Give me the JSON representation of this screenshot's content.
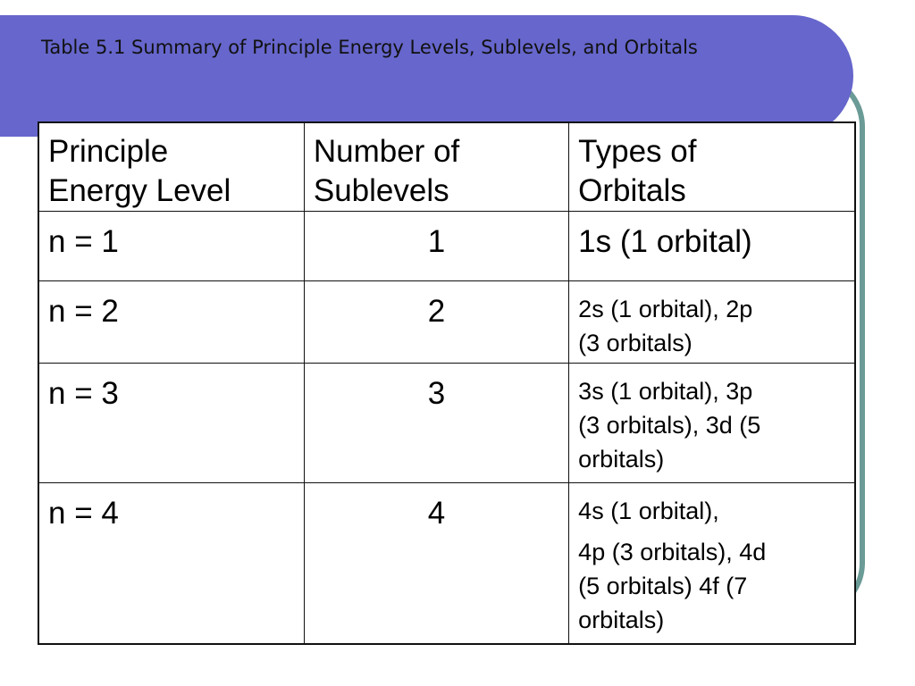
{
  "slide": {
    "title": "Table 5.1 Summary of Principle Energy Levels, Sublevels, and Orbitals",
    "accent_color": "#6666cc",
    "frame_color": "#6b9b96"
  },
  "table": {
    "headers": [
      [
        "Principle",
        "Energy Level"
      ],
      [
        "Number of",
        "Sublevels"
      ],
      [
        "Types of",
        "Orbitals"
      ]
    ],
    "rows": [
      {
        "level": "n = 1",
        "sublevels": "1",
        "orbitals": [
          "1s (1 orbital)"
        ]
      },
      {
        "level": "n = 2",
        "sublevels": "2",
        "orbitals": [
          "2s (1 orbital), 2p",
          "(3 orbitals)"
        ]
      },
      {
        "level": "n = 3",
        "sublevels": "3",
        "orbitals": [
          "3s (1 orbital), 3p",
          "(3 orbitals), 3d (5",
          "orbitals)"
        ]
      },
      {
        "level": "n = 4",
        "sublevels": "4",
        "orbitals": [
          "4s (1 orbital),",
          "4p (3 orbitals), 4d",
          "(5 orbitals) 4f (7",
          "orbitals)"
        ]
      }
    ]
  }
}
